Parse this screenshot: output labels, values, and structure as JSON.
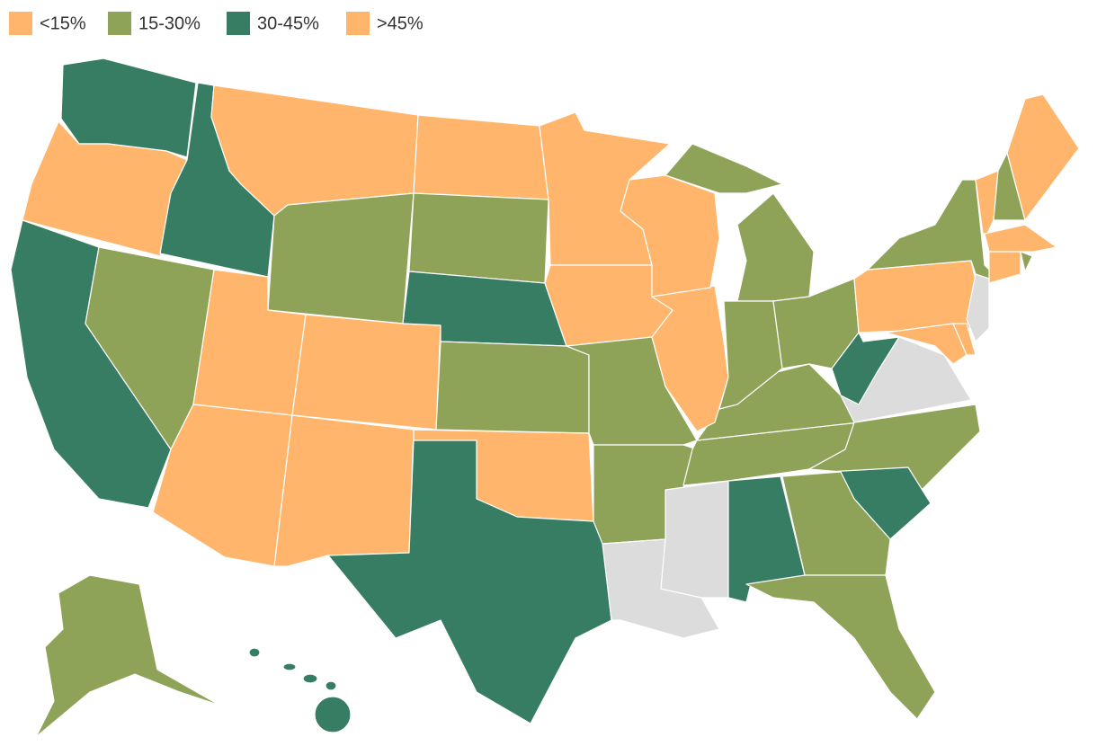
{
  "legend": [
    {
      "label": "<15%",
      "color": "#ffb66c"
    },
    {
      "label": "15-30%",
      "color": "#8ea358"
    },
    {
      "label": "30-45%",
      "color": "#377d64"
    },
    {
      "label": ">45%",
      "color": "#ffb66c"
    }
  ],
  "no_data_color": "#dcdcdc"
}
